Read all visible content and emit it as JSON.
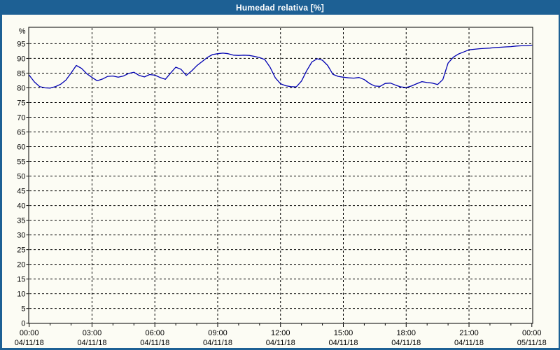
{
  "window": {
    "title": "Humedad relativa [%]",
    "title_bar_color": "#1d6094",
    "border_color": "#1d6094",
    "content_background": "#fcfcf4"
  },
  "chart_data": {
    "type": "line",
    "title": "Humedad relativa [%]",
    "y_unit_label": "%",
    "ylim": [
      0,
      100.6
    ],
    "y_tick_step": 5,
    "y_tick_labels": [
      "0",
      "5",
      "10",
      "15",
      "20",
      "25",
      "30",
      "35",
      "40",
      "45",
      "50",
      "55",
      "60",
      "65",
      "70",
      "75",
      "80",
      "85",
      "90",
      "95"
    ],
    "xlim_hours": [
      0,
      24.07
    ],
    "x_minor_tick_step_hours": 1,
    "grid": "dashed",
    "legend": "none",
    "line_color": "#0000b2",
    "grid_color": "#000000",
    "axis_color": "#000000",
    "x_major_labels": [
      {
        "hour": 0,
        "time": "00:00",
        "date": "04/11/18"
      },
      {
        "hour": 3,
        "time": "03:00",
        "date": "04/11/18"
      },
      {
        "hour": 6,
        "time": "06:00",
        "date": "04/11/18"
      },
      {
        "hour": 9,
        "time": "09:00",
        "date": "04/11/18"
      },
      {
        "hour": 12,
        "time": "12:00",
        "date": "04/11/18"
      },
      {
        "hour": 15,
        "time": "15:00",
        "date": "04/11/18"
      },
      {
        "hour": 18,
        "time": "18:00",
        "date": "04/11/18"
      },
      {
        "hour": 21,
        "time": "21:00",
        "date": "04/11/18"
      },
      {
        "hour": 24,
        "time": "00:00",
        "date": "05/11/18"
      }
    ],
    "series": [
      {
        "name": "Humedad relativa",
        "x_hours": [
          0,
          0.25,
          0.5,
          0.75,
          1,
          1.25,
          1.5,
          1.75,
          2,
          2.25,
          2.5,
          2.75,
          3,
          3.25,
          3.5,
          3.75,
          4,
          4.25,
          4.5,
          4.75,
          5,
          5.25,
          5.5,
          5.75,
          6,
          6.25,
          6.5,
          6.75,
          7,
          7.25,
          7.5,
          7.75,
          8,
          8.25,
          8.5,
          8.75,
          9,
          9.25,
          9.5,
          9.75,
          10,
          10.25,
          10.5,
          10.75,
          11,
          11.25,
          11.5,
          11.75,
          12,
          12.25,
          12.5,
          12.75,
          13,
          13.25,
          13.5,
          13.75,
          14,
          14.25,
          14.5,
          14.75,
          15,
          15.25,
          15.5,
          15.75,
          16,
          16.25,
          16.5,
          16.75,
          17,
          17.25,
          17.5,
          17.75,
          18,
          18.25,
          18.5,
          18.75,
          19,
          19.25,
          19.5,
          19.75,
          20,
          20.25,
          20.5,
          20.75,
          21,
          21.25,
          21.5,
          21.75,
          22,
          22.25,
          22.5,
          22.75,
          23,
          23.25,
          23.5,
          23.75,
          24
        ],
        "values": [
          84.3,
          82.0,
          80.4,
          80.0,
          79.9,
          80.4,
          81.2,
          82.6,
          85.0,
          87.6,
          86.6,
          84.8,
          83.5,
          82.4,
          83.0,
          83.9,
          84.0,
          83.6,
          84.0,
          84.9,
          85.3,
          84.2,
          83.7,
          84.5,
          84.3,
          83.5,
          82.9,
          85.0,
          87.0,
          86.3,
          84.2,
          85.7,
          87.5,
          88.9,
          90.3,
          91.3,
          91.6,
          91.8,
          91.6,
          91.1,
          91.0,
          91.1,
          91.0,
          90.7,
          90.3,
          89.6,
          87.0,
          83.4,
          81.4,
          80.7,
          80.4,
          80.3,
          82.3,
          85.8,
          88.8,
          89.9,
          89.4,
          87.6,
          84.6,
          83.9,
          83.6,
          83.4,
          83.3,
          83.5,
          82.8,
          81.5,
          80.6,
          80.5,
          81.5,
          81.6,
          80.9,
          80.3,
          80.1,
          80.6,
          81.4,
          82.1,
          81.8,
          81.6,
          81.1,
          82.8,
          88.4,
          90.4,
          91.5,
          92.2,
          92.9,
          93.1,
          93.3,
          93.4,
          93.5,
          93.7,
          93.8,
          93.9,
          94.0,
          94.2,
          94.3,
          94.3,
          94.5
        ]
      }
    ]
  }
}
